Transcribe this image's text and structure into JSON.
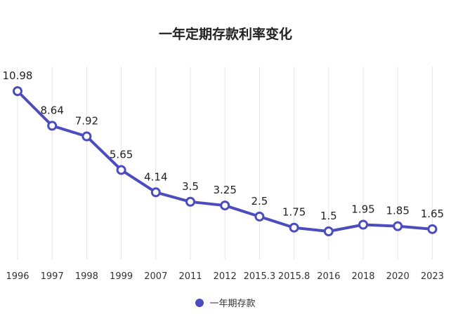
{
  "chart_data": {
    "type": "line",
    "title": "一年定期存款利率变化",
    "categories": [
      "1996",
      "1997",
      "1998",
      "1999",
      "2007",
      "2011",
      "2012",
      "2015.3",
      "2015.8",
      "2016",
      "2018",
      "2020",
      "2023"
    ],
    "series": [
      {
        "name": "一年期存款",
        "values": [
          10.98,
          8.64,
          7.92,
          5.65,
          4.14,
          3.5,
          3.25,
          2.5,
          1.75,
          1.5,
          1.95,
          1.85,
          1.65
        ],
        "labels": [
          "10.98",
          "8.64",
          "7.92",
          "5.65",
          "4.14",
          "3.5",
          "3.25",
          "2.5",
          "1.75",
          "1.5",
          "1.95",
          "1.85",
          "1.65"
        ]
      }
    ],
    "xlabel": "",
    "ylabel": "",
    "y_axis_visible": false,
    "grid": "vertical",
    "legend_position": "bottom-center",
    "colors": {
      "series": "#4b4cbd",
      "grid": "#e4e4e4"
    }
  }
}
